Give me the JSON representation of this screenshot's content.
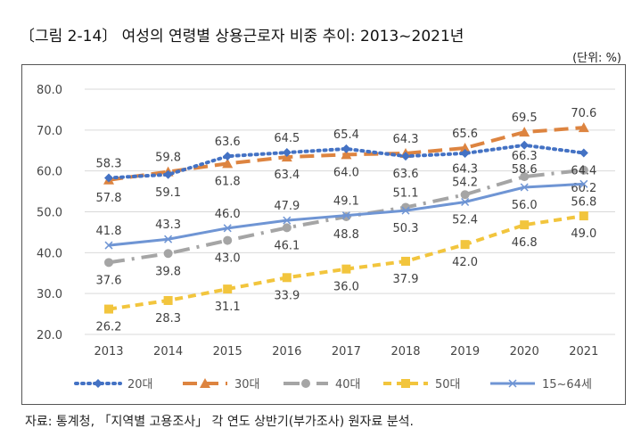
{
  "title": "〔그림 2-14〕 여성의 연령별 상용근로자 비중 추이: 2013~2021년",
  "unit": "(단위: %)",
  "source": "자료: 통계청, 「지역별 고용조사」 각 연도 상반기(부가조사) 원자료 분석.",
  "chart_data": {
    "type": "line",
    "categories": [
      "2013",
      "2014",
      "2015",
      "2016",
      "2017",
      "2018",
      "2019",
      "2020",
      "2021"
    ],
    "ylim": [
      20,
      80
    ],
    "yticks": [
      "20.0",
      "30.0",
      "40.0",
      "50.0",
      "60.0",
      "70.0",
      "80.0"
    ],
    "grid": true,
    "legend_position": "bottom",
    "series": [
      {
        "name": "20대",
        "color": "#4472c4",
        "dash": "2,5",
        "marker": "diamond",
        "values": [
          58.3,
          59.1,
          63.6,
          64.5,
          65.4,
          63.6,
          64.3,
          66.3,
          64.4
        ],
        "label_pos": [
          "above",
          "below",
          "above",
          "above",
          "above",
          "below",
          "below",
          "below",
          "below"
        ]
      },
      {
        "name": "30대",
        "color": "#dd8440",
        "dash": "16,8",
        "marker": "triangle",
        "values": [
          57.8,
          59.8,
          61.8,
          63.4,
          64.0,
          64.3,
          65.6,
          69.5,
          70.6
        ],
        "label_pos": [
          "below",
          "above",
          "below",
          "below",
          "below",
          "above",
          "above",
          "above",
          "above"
        ]
      },
      {
        "name": "40대",
        "color": "#a5a5a5",
        "dash": "18,8,3,8",
        "marker": "circle",
        "values": [
          37.6,
          39.8,
          43.0,
          46.1,
          48.8,
          51.1,
          54.2,
          58.6,
          60.2
        ],
        "label_pos": [
          "below",
          "below",
          "below",
          "below",
          "below",
          "above",
          "above",
          "above",
          "below"
        ]
      },
      {
        "name": "50대",
        "color": "#f2c53d",
        "dash": "9,6",
        "marker": "square",
        "values": [
          26.2,
          28.3,
          31.1,
          33.9,
          36.0,
          37.9,
          42.0,
          46.8,
          49.0
        ],
        "label_pos": [
          "below",
          "below",
          "below",
          "below",
          "below",
          "below",
          "below",
          "below",
          "below"
        ]
      },
      {
        "name": "15~64세",
        "color": "#6f95d4",
        "dash": "",
        "marker": "x",
        "values": [
          41.8,
          43.3,
          46.0,
          47.9,
          49.1,
          50.3,
          52.4,
          56.0,
          56.8
        ],
        "label_pos": [
          "above",
          "above",
          "above",
          "above",
          "above",
          "below",
          "below",
          "below",
          "below"
        ]
      }
    ]
  }
}
